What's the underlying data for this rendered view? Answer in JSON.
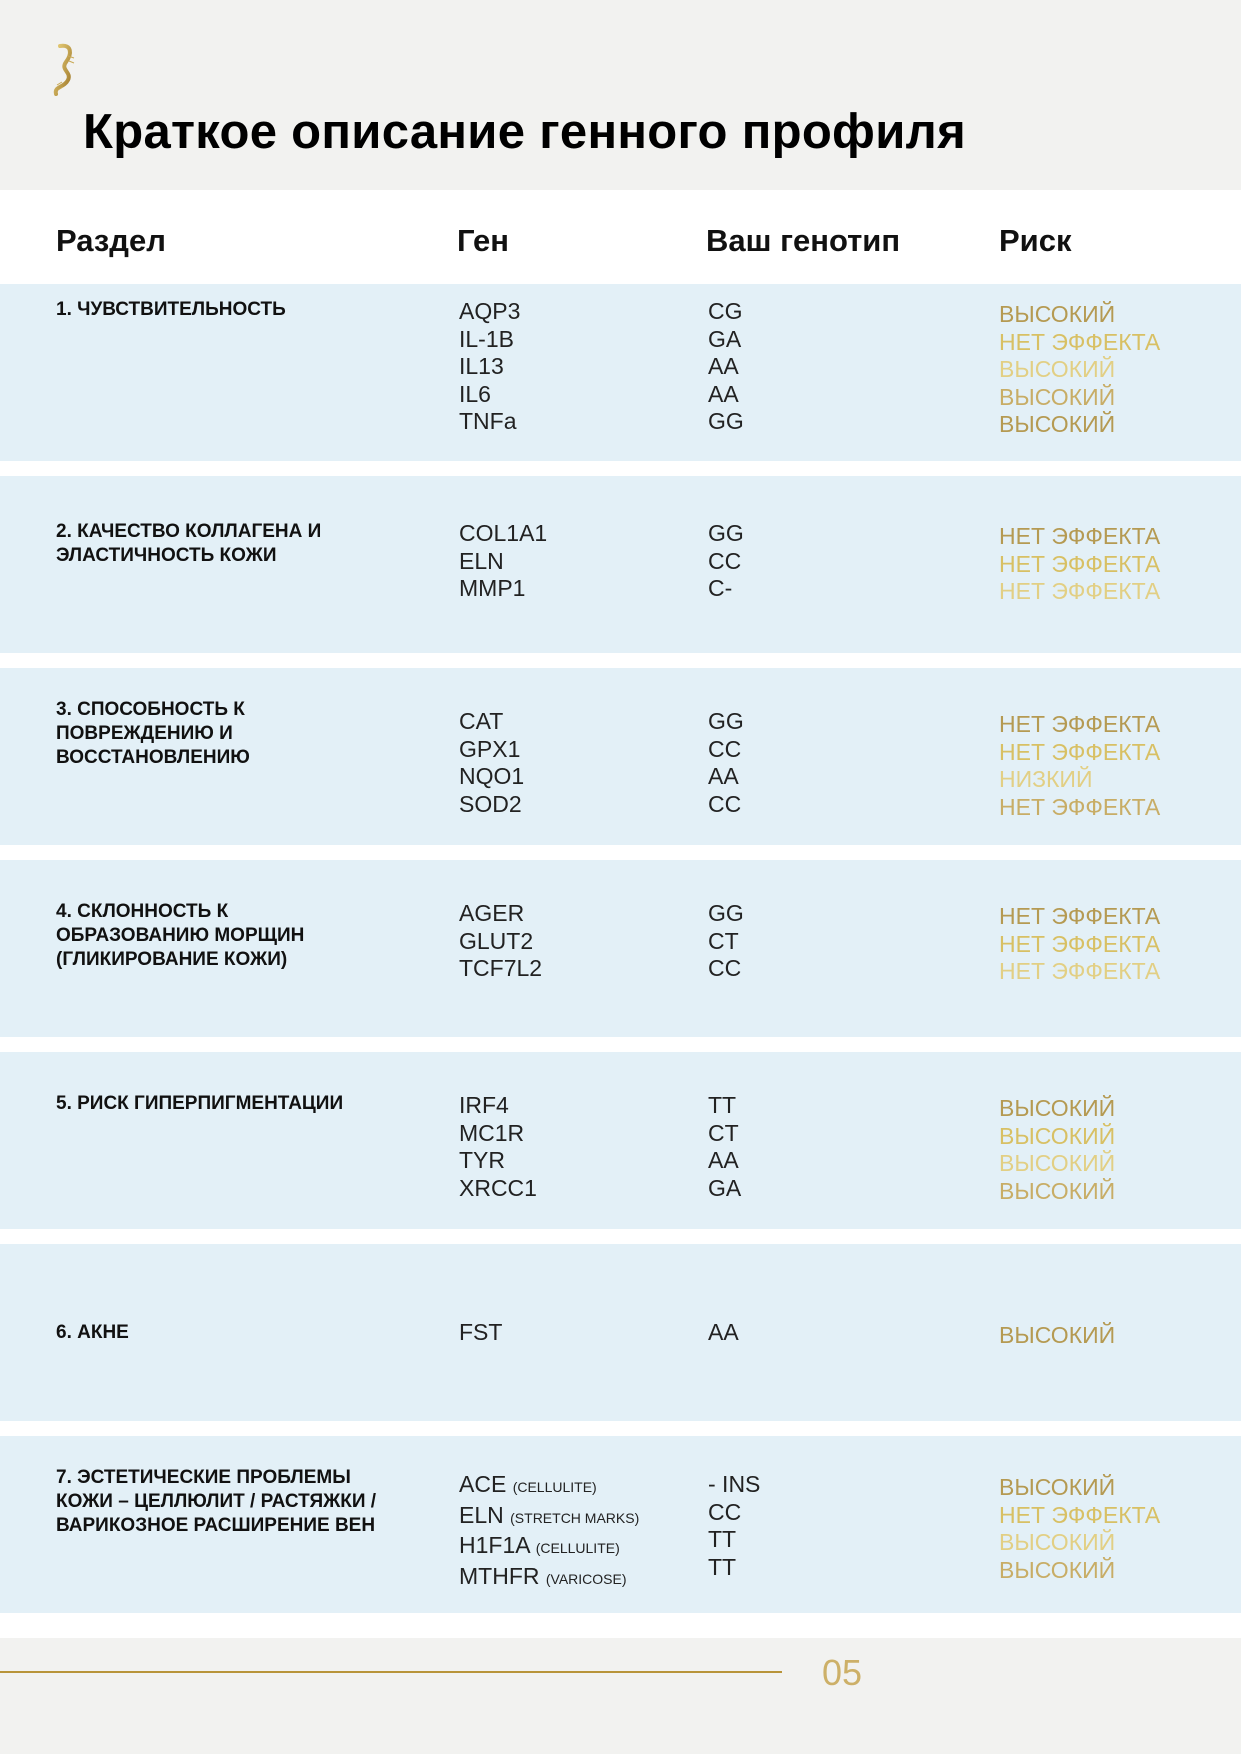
{
  "title": "Краткое описание генного профиля",
  "colors": {
    "accent": "#b8943a",
    "row_bg": "#e3f0f7",
    "risk_shades": [
      "#b59a52",
      "#d8c064",
      "#e2cf84",
      "#c8ad66"
    ]
  },
  "headers": [
    "Раздел",
    "Ген",
    "Ваш генотип",
    "Риск"
  ],
  "sections": [
    {
      "label": "1. Чувствительность",
      "rows": [
        [
          "AQP3",
          "",
          "CG",
          "ВЫСОКИЙ"
        ],
        [
          "IL-1B",
          "",
          "GA",
          "НЕТ ЭФФЕКТА"
        ],
        [
          "IL13",
          "",
          "AA",
          "ВЫСОКИЙ"
        ],
        [
          "IL6",
          "",
          "AA",
          "ВЫСОКИЙ"
        ],
        [
          "TNFa",
          "",
          "GG",
          "ВЫСОКИЙ"
        ]
      ]
    },
    {
      "label": "2. Качество коллагена и эластичность кожи",
      "rows": [
        [
          "COL1A1",
          "",
          "GG",
          "НЕТ ЭФФЕКТА"
        ],
        [
          "ELN",
          "",
          "CC",
          "НЕТ ЭФФЕКТА"
        ],
        [
          "MMP1",
          "",
          "C-",
          "НЕТ ЭФФЕКТА"
        ]
      ]
    },
    {
      "label": "3. Способность к повреждению и восстановлению",
      "rows": [
        [
          "CAT",
          "",
          "GG",
          "НЕТ ЭФФЕКТА"
        ],
        [
          "GPX1",
          "",
          "CC",
          "НЕТ ЭФФЕКТА"
        ],
        [
          "NQO1",
          "",
          "AA",
          "НИЗКИЙ"
        ],
        [
          "SOD2",
          "",
          "CC",
          "НЕТ ЭФФЕКТА"
        ]
      ]
    },
    {
      "label": "4. Склонность к образованию морщин (гликирование кожи)",
      "rows": [
        [
          "AGER",
          "",
          "GG",
          "НЕТ ЭФФЕКТА"
        ],
        [
          "GLUT2",
          "",
          "CT",
          "НЕТ ЭФФЕКТА"
        ],
        [
          "TCF7L2",
          "",
          "CC",
          "НЕТ ЭФФЕКТА"
        ]
      ]
    },
    {
      "label": "5. Риск гиперпигментации",
      "rows": [
        [
          "IRF4",
          "",
          "TT",
          "ВЫСОКИЙ"
        ],
        [
          "MC1R",
          "",
          "CT",
          "ВЫСОКИЙ"
        ],
        [
          "TYR",
          "",
          "AA",
          "ВЫСОКИЙ"
        ],
        [
          "XRCC1",
          "",
          "GA",
          "ВЫСОКИЙ"
        ]
      ]
    },
    {
      "label": "6. Акне",
      "rows": [
        [
          "FST",
          "",
          "AA",
          "ВЫСОКИЙ"
        ]
      ]
    },
    {
      "label": "7. Эстетические проблемы кожи – целлюлит / растяжки / варикозное расширение вен",
      "rows": [
        [
          "ACE",
          "(CELLULITE)",
          "- INS",
          "ВЫСОКИЙ"
        ],
        [
          "ELN",
          "(STRETCH MARKS)",
          "CC",
          "НЕТ ЭФФЕКТА"
        ],
        [
          "H1F1A",
          "(CELLULITE)",
          "TT",
          "ВЫСОКИЙ"
        ],
        [
          "MTHFR",
          "(VARICOSE)",
          "TT",
          "ВЫСОКИЙ"
        ]
      ]
    }
  ],
  "page_number": "05"
}
